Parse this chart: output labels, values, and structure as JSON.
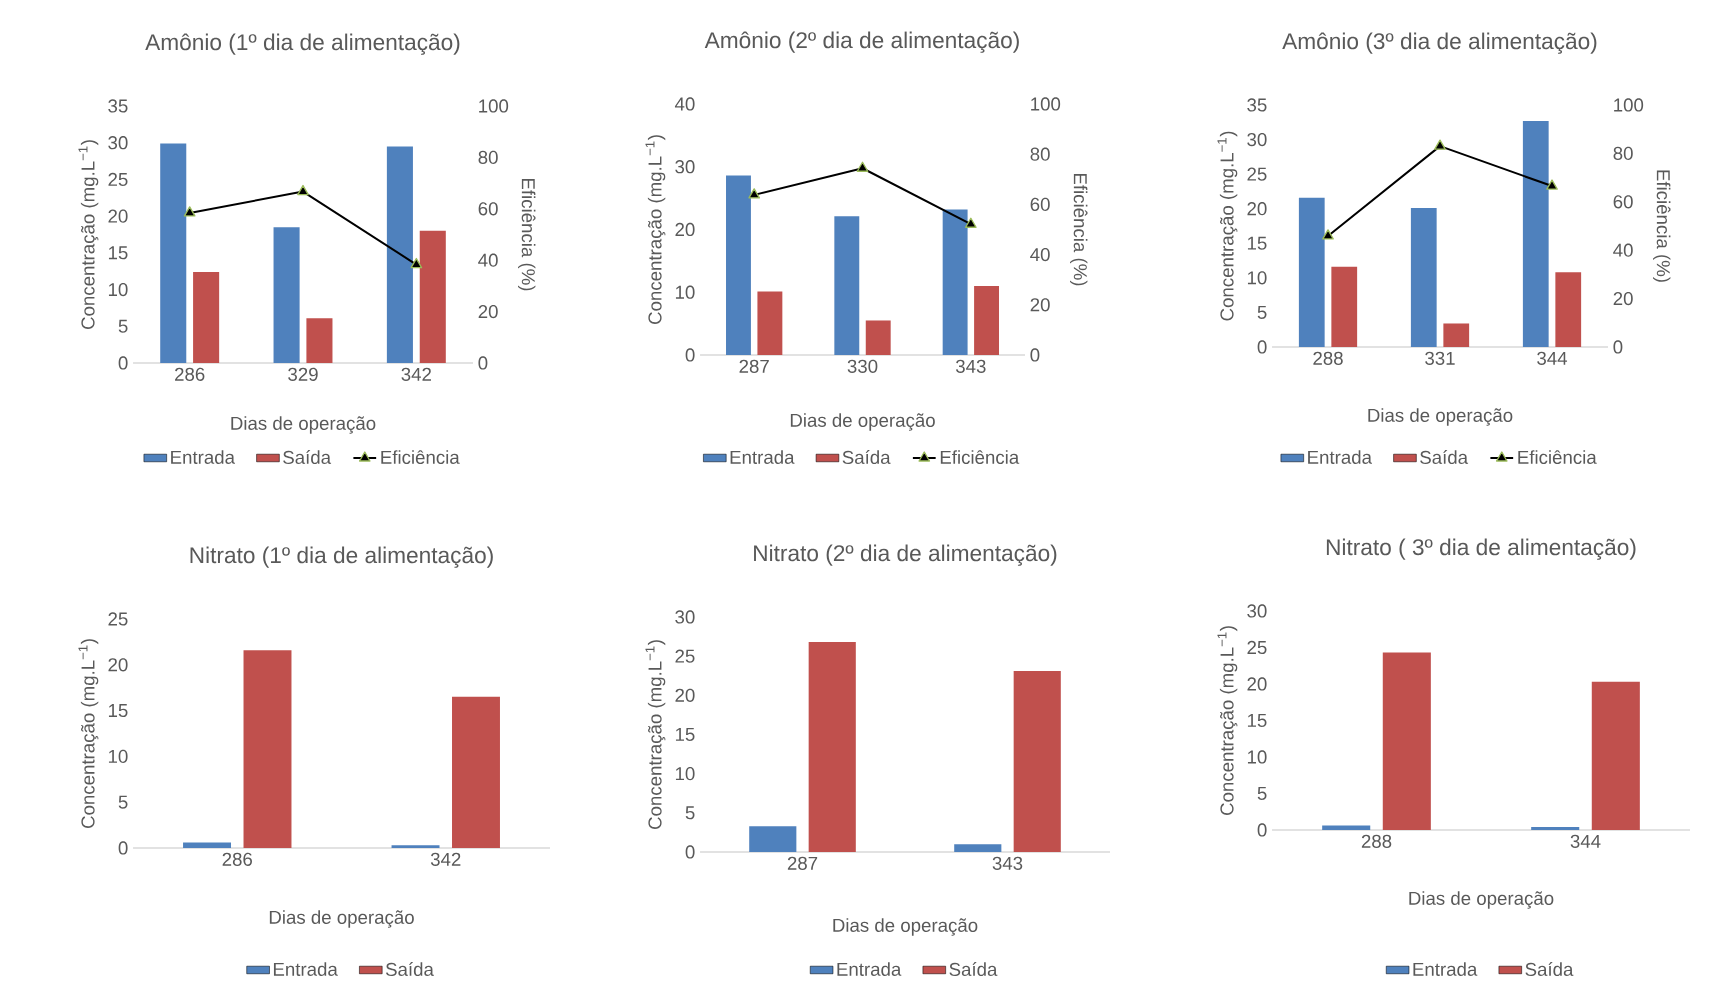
{
  "chart_data": [
    {
      "type": "bar",
      "title": "Amônio (1º dia de alimentação)",
      "xlabel": "Dias de operação",
      "ylabel": "Concentração (mg.L$^{−1}$)",
      "y2label": "Eficiência (%)",
      "categories": [
        "286",
        "329",
        "342"
      ],
      "legend": "bottom",
      "ylim": [
        0,
        35
      ],
      "yticks": [
        0,
        5,
        10,
        15,
        20,
        25,
        30,
        35
      ],
      "y2lim": [
        0,
        100
      ],
      "y2ticks": [
        0,
        20,
        40,
        60,
        80,
        100
      ],
      "series": [
        {
          "name": "Entrada",
          "color": "#4f81bd",
          "values": [
            29.9,
            18.5,
            29.5
          ]
        },
        {
          "name": "Saída",
          "color": "#c0504d",
          "values": [
            12.4,
            6.1,
            18.0
          ]
        },
        {
          "name": "Eficiência",
          "type": "line",
          "axis": "y2",
          "marker": "triangle",
          "color": "#000000",
          "values": [
            58.4,
            66.7,
            38.3
          ]
        }
      ]
    },
    {
      "type": "bar",
      "title": "Amônio (2º dia de alimentação)",
      "xlabel": "Dias de operação",
      "ylabel": "Concentração (mg.L$^{−1}$)",
      "y2label": "Eficiência (%)",
      "categories": [
        "287",
        "330",
        "343"
      ],
      "legend": "bottom",
      "ylim": [
        0,
        40
      ],
      "yticks": [
        0,
        10,
        20,
        30,
        40
      ],
      "y2lim": [
        0,
        100
      ],
      "y2ticks": [
        0,
        20,
        40,
        60,
        80,
        100
      ],
      "series": [
        {
          "name": "Entrada",
          "color": "#4f81bd",
          "values": [
            28.6,
            22.1,
            23.2
          ]
        },
        {
          "name": "Saída",
          "color": "#c0504d",
          "values": [
            10.1,
            5.5,
            11.0
          ]
        },
        {
          "name": "Eficiência",
          "type": "line",
          "axis": "y2",
          "marker": "triangle",
          "color": "#000000",
          "values": [
            63.8,
            74.4,
            52.1
          ]
        }
      ]
    },
    {
      "type": "bar",
      "title": "Amônio (3º dia de alimentação)",
      "xlabel": "Dias de operação",
      "ylabel": "Concentração (mg.L$^{−1}$)",
      "y2label": "Eficiência (%)",
      "categories": [
        "288",
        "331",
        "344"
      ],
      "legend": "bottom",
      "ylim": [
        0,
        35
      ],
      "yticks": [
        0,
        5,
        10,
        15,
        20,
        25,
        30,
        35
      ],
      "y2lim": [
        0,
        100
      ],
      "y2ticks": [
        0,
        20,
        40,
        60,
        80,
        100
      ],
      "series": [
        {
          "name": "Entrada",
          "color": "#4f81bd",
          "values": [
            21.6,
            20.1,
            32.7
          ]
        },
        {
          "name": "Saída",
          "color": "#c0504d",
          "values": [
            11.6,
            3.4,
            10.8
          ]
        },
        {
          "name": "Eficiência",
          "type": "line",
          "axis": "y2",
          "marker": "triangle",
          "color": "#000000",
          "values": [
            45.9,
            83.0,
            66.5
          ]
        }
      ]
    },
    {
      "type": "bar",
      "title": "Nitrato (1º dia de alimentação)",
      "xlabel": "Dias de operação",
      "ylabel": "Concentração (mg.L$^{−1}$)",
      "categories": [
        "286",
        "342"
      ],
      "legend": "bottom",
      "ylim": [
        0,
        25
      ],
      "yticks": [
        0,
        5,
        10,
        15,
        20,
        25
      ],
      "series": [
        {
          "name": "Entrada",
          "color": "#4f81bd",
          "values": [
            0.6,
            0.3
          ]
        },
        {
          "name": "Saída",
          "color": "#c0504d",
          "values": [
            21.6,
            16.5
          ]
        }
      ]
    },
    {
      "type": "bar",
      "title": "Nitrato (2º dia de alimentação)",
      "xlabel": "Dias de operação",
      "ylabel": "Concentração (mg.L$^{−1}$)",
      "categories": [
        "287",
        "343"
      ],
      "legend": "bottom",
      "ylim": [
        0,
        30
      ],
      "yticks": [
        0,
        5,
        10,
        15,
        20,
        25,
        30
      ],
      "series": [
        {
          "name": "Entrada",
          "color": "#4f81bd",
          "values": [
            3.3,
            1.0
          ]
        },
        {
          "name": "Saída",
          "color": "#c0504d",
          "values": [
            26.8,
            23.1
          ]
        }
      ]
    },
    {
      "type": "bar",
      "title": "Nitrato ( 3º dia de alimentação)",
      "xlabel": "Dias de operação",
      "ylabel": "Concentração (mg.L$^{−1}$)",
      "categories": [
        "288",
        "344"
      ],
      "legend": "bottom",
      "ylim": [
        0,
        30
      ],
      "yticks": [
        0,
        5,
        10,
        15,
        20,
        25,
        30
      ],
      "series": [
        {
          "name": "Entrada",
          "color": "#4f81bd",
          "values": [
            0.6,
            0.4
          ]
        },
        {
          "name": "Saída",
          "color": "#c0504d",
          "values": [
            24.3,
            20.3
          ]
        }
      ]
    }
  ]
}
